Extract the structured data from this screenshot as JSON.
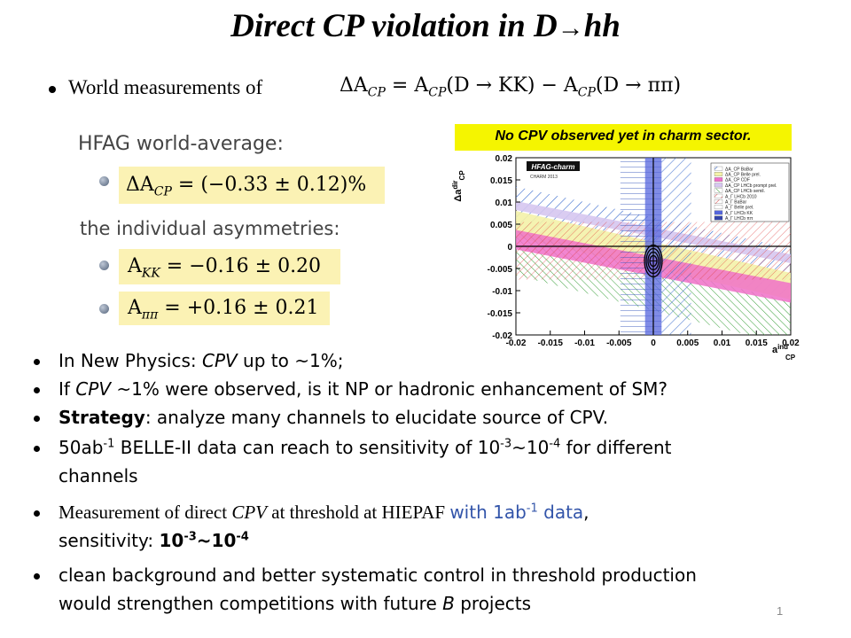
{
  "slide": {
    "title": "Direct CP violation in D",
    "title_arrow": "→",
    "title_suffix": "hh",
    "world_label": "World measurements of",
    "world_formula": "ΔA",
    "world_formula_rest": " = A",
    "world_formula_kk": "(D → KK) − A",
    "world_formula_pipi": "(D → ππ)",
    "hfag_title": "HFAG world-average:",
    "hfag_value": "ΔA",
    "hfag_value_rest": " = (−0.33 ± 0.12)%",
    "individual_title": "the individual asymmetries:",
    "akk": "A",
    "akk_rest": " = −0.16 ± 0.20",
    "apipi": "A",
    "apipi_rest": " = +0.16 ± 0.21",
    "callout": "No CPV observed yet in charm sector.",
    "page_number": "1"
  },
  "chart": {
    "hfag_label": "HFAG-charm",
    "charm_label": "CHARM 2013",
    "ylabel": "Δa",
    "ylabel_sup": "dir",
    "ylabel_sub": "CP",
    "xlabel": "a",
    "xlabel_sup": "ind",
    "xlabel_sub": "CP",
    "legend": [
      "ΔA_CP BaBar",
      "ΔA_CP Belle prel.",
      "ΔA_CP CDF",
      "ΔA_CP LHCb prompt prel.",
      "ΔA_CP LHCb semil.",
      "A_Γ LHCb 2010",
      "A_Γ BaBar",
      "A_Γ Belle prel.",
      "A_Γ LHCb KK",
      "A_Γ LHCb ππ"
    ]
  },
  "chart_data": {
    "type": "scatter",
    "title": "HFAG-charm",
    "xlabel": "a_CP^ind",
    "ylabel": "Δa_CP^dir",
    "xlim": [
      -0.02,
      0.02
    ],
    "ylim": [
      -0.02,
      0.02
    ],
    "xticks": [
      "-0.02",
      "-0.015",
      "-0.01",
      "-0.005",
      "0",
      "0.005",
      "0.01",
      "0.015",
      "0.02"
    ],
    "yticks": [
      "0.02",
      "0.015",
      "0.01",
      "0.005",
      "0",
      "-0.005",
      "-0.01",
      "-0.015",
      "-0.02"
    ],
    "central_point": {
      "x": 0.0,
      "y": -0.0033
    },
    "grid": false,
    "legend_position": "top-right"
  },
  "bullets": [
    {
      "pre": "In New Physics: ",
      "em": "CPV",
      "post": " up to ~1%;"
    },
    {
      "pre": "If ",
      "em": "CPV",
      "post": " ~1% were observed,  is it NP or hadronic enhancement of SM?"
    },
    {
      "strong": "Strategy",
      "post": ": analyze many channels to elucidate source of CPV."
    },
    {
      "line1a": "50ab",
      "line1sup": "-1",
      "line1b": " BELLE-II data can reach to sensitivity of 10",
      "sup2": "-3",
      "mid": "~10",
      "sup3": "-4",
      "line1c": " for different",
      "line2": "channels"
    },
    {
      "serif_a": "Measurement of direct ",
      "serif_em": "CPV",
      "serif_b": " at threshold at HIEPAF ",
      "blue": "with 1ab",
      "blue_sup": "-1",
      "blue_tail": " data",
      ",": ",",
      "line2a": "sensitivity: ",
      "strong": "10",
      "sup_a": "-3",
      "strong_mid": "~10",
      "sup_b": "-4"
    },
    {
      "line1": "clean background and better systematic control in threshold production",
      "line2a": "would strengthen competitions with future ",
      "em": "B",
      "line2b": " projects"
    }
  ]
}
